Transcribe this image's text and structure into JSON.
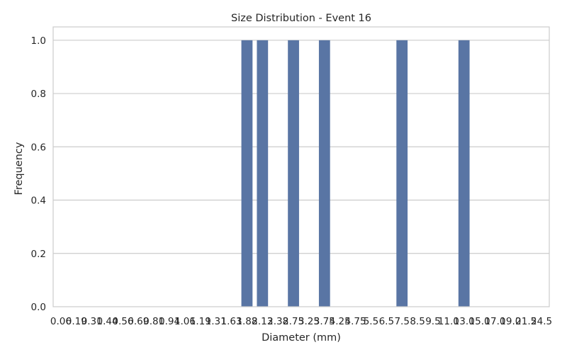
{
  "chart_data": {
    "type": "bar",
    "title": "Size Distribution - Event 16",
    "xlabel": "Diameter (mm)",
    "ylabel": "Frequency",
    "categories": [
      "0.06",
      "0.19",
      "0.31",
      "0.44",
      "0.56",
      "0.69",
      "0.81",
      "0.94",
      "1.06",
      "1.19",
      "1.31",
      "1.63",
      "1.88",
      "2.13",
      "2.38",
      "2.75",
      "3.25",
      "3.75",
      "4.25",
      "4.75",
      "5.5",
      "6.5",
      "7.5",
      "8.5",
      "9.5",
      "11.0",
      "13.0",
      "15.0",
      "17.0",
      "19.0",
      "21.5",
      "24.5"
    ],
    "values": [
      0,
      0,
      0,
      0,
      0,
      0,
      0,
      0,
      0,
      0,
      0,
      0,
      1,
      1,
      0,
      1,
      0,
      1,
      0,
      0,
      0,
      0,
      1,
      0,
      0,
      0,
      1,
      0,
      0,
      0,
      0,
      0
    ],
    "ylim": [
      0,
      1.05
    ],
    "yticks": [
      "0.0",
      "0.2",
      "0.4",
      "0.6",
      "0.8",
      "1.0"
    ],
    "grid": "y",
    "bar_color": "#5975a4",
    "grid_color": "#cccccc",
    "spine_color": "#cccccc"
  }
}
